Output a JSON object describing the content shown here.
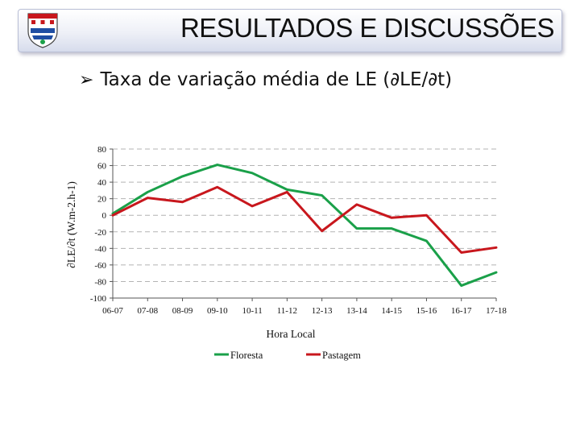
{
  "header": {
    "title": "RESULTADOS E DISCUSSÕES",
    "logo_icon": "university-crest-icon"
  },
  "subtitle": {
    "bullet_icon": "arrow-bullet-icon",
    "text": "Taxa de variação média de LE (∂LE/∂t)"
  },
  "chart_data": {
    "type": "line",
    "categories": [
      "06-07",
      "07-08",
      "08-09",
      "09-10",
      "10-11",
      "11-12",
      "12-13",
      "13-14",
      "14-15",
      "15-16",
      "16-17",
      "17-18"
    ],
    "series": [
      {
        "name": "Floresta",
        "color": "#1aa049",
        "values": [
          2,
          28,
          47,
          61,
          51,
          31,
          24,
          -16,
          -16,
          -31,
          -85,
          -69
        ]
      },
      {
        "name": "Pastagem",
        "color": "#c8171d",
        "values": [
          0,
          21,
          16,
          34,
          11,
          28,
          -19,
          13,
          -3,
          0,
          -45,
          -39
        ]
      }
    ],
    "xlabel": "Hora Local",
    "ylabel": "∂LE/∂t (W.m-2.h-1)",
    "ylim": [
      -100,
      80
    ],
    "yticks": [
      80,
      60,
      40,
      20,
      0,
      -20,
      -40,
      -60,
      -80,
      -100
    ],
    "grid": true,
    "legend_position": "bottom"
  }
}
